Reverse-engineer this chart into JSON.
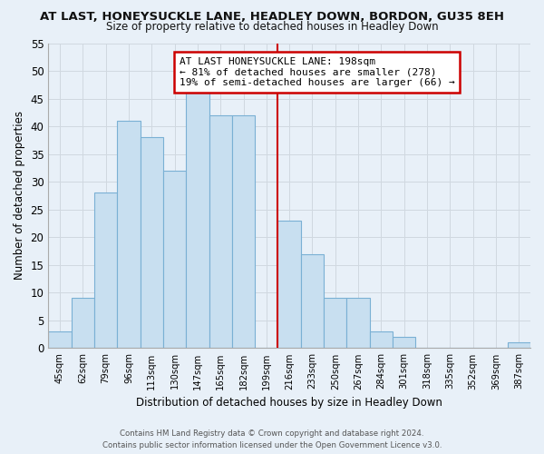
{
  "title": "AT LAST, HONEYSUCKLE LANE, HEADLEY DOWN, BORDON, GU35 8EH",
  "subtitle": "Size of property relative to detached houses in Headley Down",
  "xlabel": "Distribution of detached houses by size in Headley Down",
  "ylabel": "Number of detached properties",
  "bar_labels": [
    "45sqm",
    "62sqm",
    "79sqm",
    "96sqm",
    "113sqm",
    "130sqm",
    "147sqm",
    "165sqm",
    "182sqm",
    "199sqm",
    "216sqm",
    "233sqm",
    "250sqm",
    "267sqm",
    "284sqm",
    "301sqm",
    "318sqm",
    "335sqm",
    "352sqm",
    "369sqm",
    "387sqm"
  ],
  "bar_values": [
    3,
    9,
    28,
    41,
    38,
    32,
    46,
    42,
    42,
    0,
    23,
    17,
    9,
    9,
    3,
    2,
    0,
    0,
    0,
    0,
    1
  ],
  "bar_color": "#c8dff0",
  "bar_edge_color": "#7ab0d4",
  "grid_color": "#d0d8e0",
  "vline_x_index": 9,
  "vline_color": "#cc0000",
  "annotation_line1": "AT LAST HONEYSUCKLE LANE: 198sqm",
  "annotation_line2": "← 81% of detached houses are smaller (278)",
  "annotation_line3": "19% of semi-detached houses are larger (66) →",
  "annotation_box_color": "#ffffff",
  "annotation_box_edge": "#cc0000",
  "ylim": [
    0,
    55
  ],
  "yticks": [
    0,
    5,
    10,
    15,
    20,
    25,
    30,
    35,
    40,
    45,
    50,
    55
  ],
  "footer_line1": "Contains HM Land Registry data © Crown copyright and database right 2024.",
  "footer_line2": "Contains public sector information licensed under the Open Government Licence v3.0.",
  "bg_color": "#e8f0f8",
  "plot_bg_color": "#e8f0f8",
  "title_fontsize": 9.5,
  "subtitle_fontsize": 8.5
}
